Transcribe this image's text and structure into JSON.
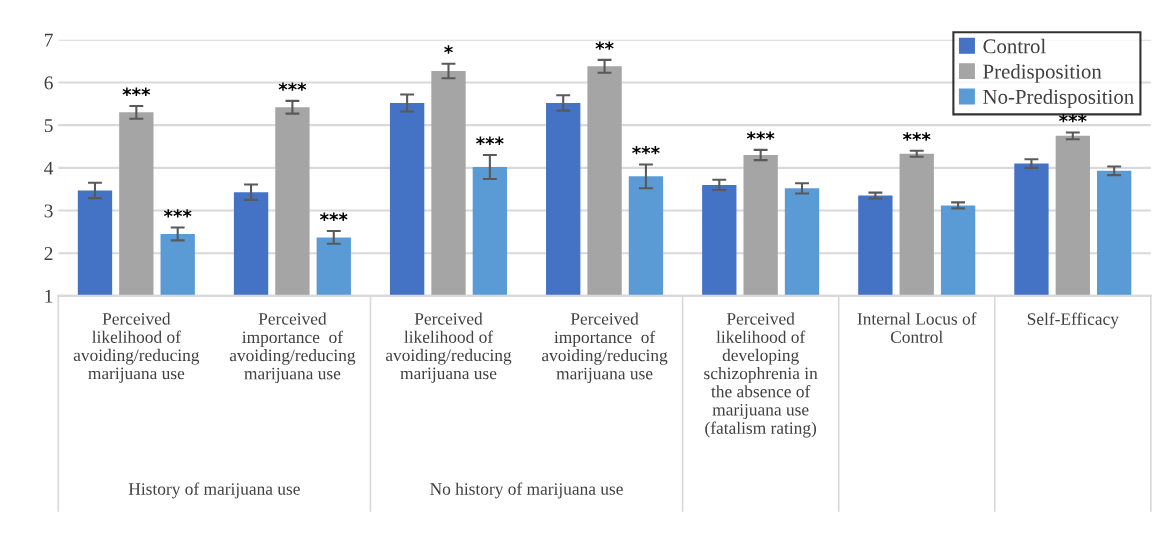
{
  "chart_data": {
    "type": "bar",
    "categories": [
      "Perceived\nlikelihood of\navoiding/reducing\nmarijuana use",
      "Perceived\nimportance  of\navoiding/reducing\nmarijuana use",
      "Perceived\nlikelihood of\navoiding/reducing\nmarijuana use",
      "Perceived\nimportance  of\navoiding/reducing\nmarijuana use",
      "Perceived\nlikelihood of\ndeveloping\nschizophrenia in\nthe absence of\nmarijuana use\n(fatalism rating)",
      "Internal Locus of\nControl",
      "Self-Efficacy"
    ],
    "series": [
      {
        "name": "Control",
        "color": "#4472c4",
        "values": [
          3.47,
          3.43,
          5.52,
          5.52,
          3.6,
          3.35,
          4.1
        ],
        "errors": [
          0.18,
          0.18,
          0.2,
          0.18,
          0.12,
          0.07,
          0.1
        ],
        "value_labels": [
          null,
          null,
          null,
          null,
          null,
          null,
          null
        ]
      },
      {
        "name": "Predisposition",
        "color": "#a5a5a5",
        "values": [
          5.3,
          5.42,
          6.27,
          6.38,
          4.3,
          4.33,
          4.75
        ],
        "errors": [
          0.15,
          0.15,
          0.17,
          0.15,
          0.12,
          0.07,
          0.08
        ],
        "value_labels": [
          "***",
          "***",
          "*",
          "**",
          "***",
          "***",
          "***"
        ]
      },
      {
        "name": "No-Predisposition",
        "color": "#5b9bd5",
        "values": [
          2.45,
          2.37,
          4.02,
          3.8,
          3.52,
          3.12,
          3.93
        ],
        "errors": [
          0.15,
          0.15,
          0.28,
          0.28,
          0.12,
          0.07,
          0.1
        ],
        "value_labels": [
          "***",
          "***",
          "***",
          "***",
          null,
          null,
          null
        ]
      }
    ],
    "ylim": [
      1,
      7
    ],
    "yticks": [
      1,
      2,
      3,
      4,
      5,
      6,
      7
    ],
    "grid": "y",
    "legend": "top right",
    "annotations": [
      "History of marijuana use",
      "No history of marijuana use"
    ]
  }
}
